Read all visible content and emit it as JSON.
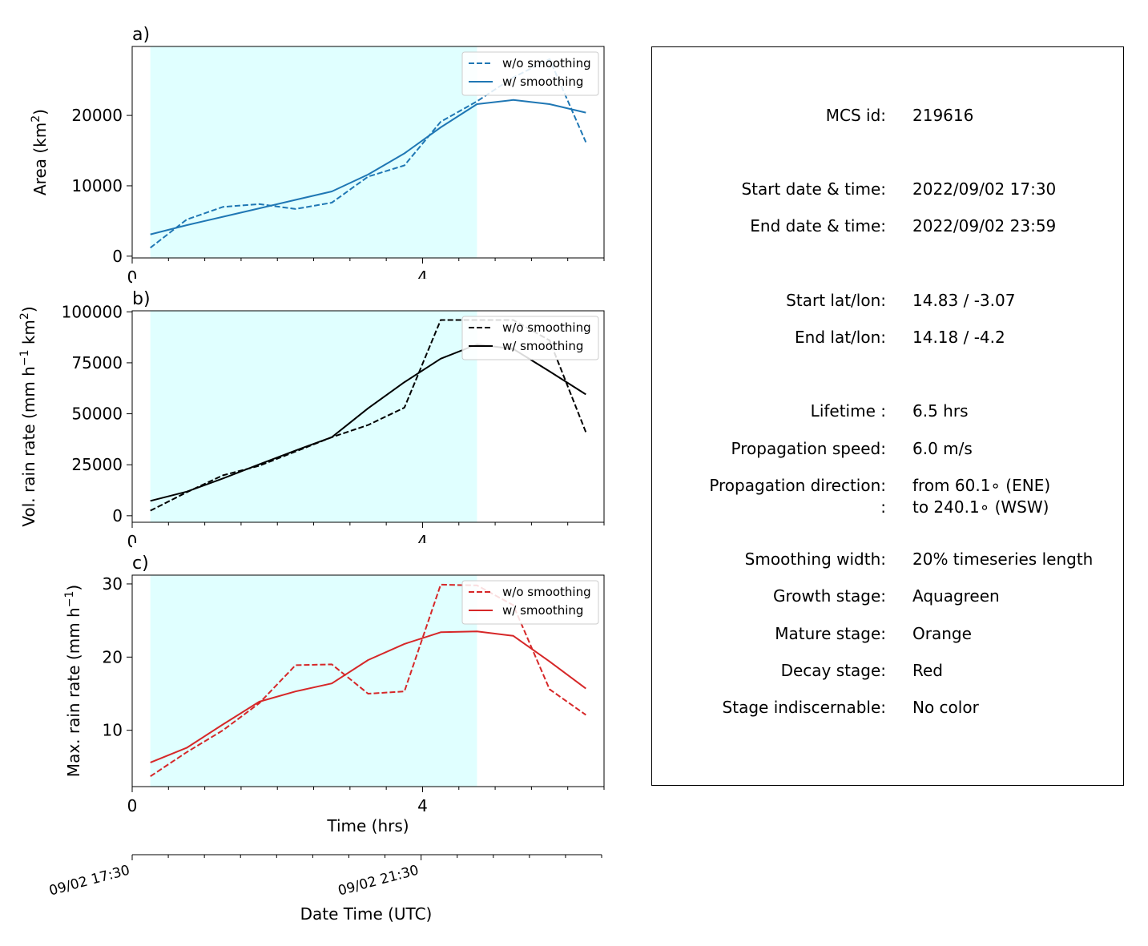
{
  "chart_data": [
    {
      "type": "line",
      "panel_label": "a)",
      "ylabel": "Area  (km",
      "ylabel_sup": "2",
      "ylabel_end": ")",
      "xticks": [
        0,
        4
      ],
      "xlim": [
        0,
        6.5
      ],
      "ylim": [
        -250,
        29800
      ],
      "yticks": [
        0,
        10000,
        20000
      ],
      "shaded_region": [
        0.25,
        4.75
      ],
      "color": "#1f77b4",
      "legend": {
        "placement": "upper right",
        "entries": [
          "w/o smoothing",
          "w/ smoothing"
        ]
      },
      "series": [
        {
          "name": "w/o smoothing",
          "style": "dashed",
          "x": [
            0.25,
            0.75,
            1.25,
            1.75,
            2.25,
            2.75,
            3.25,
            3.75,
            4.25,
            4.75,
            5.25,
            5.75,
            6.25
          ],
          "y": [
            1200,
            5200,
            7000,
            7400,
            6700,
            7600,
            11300,
            12900,
            19100,
            22000,
            25400,
            28000,
            16200
          ]
        },
        {
          "name": "w/ smoothing",
          "style": "solid",
          "x": [
            0.25,
            0.75,
            1.25,
            1.75,
            2.25,
            2.75,
            3.25,
            3.75,
            4.25,
            4.75,
            5.25,
            5.75,
            6.25
          ],
          "y": [
            3100,
            4400,
            5600,
            6800,
            8000,
            9200,
            11600,
            14600,
            18300,
            21600,
            22200,
            21600,
            20400
          ]
        }
      ]
    },
    {
      "type": "line",
      "panel_label": "b)",
      "ylabel": "Vol. rain rate (mm h",
      "ylabel_sup": "−1",
      "ylabel_mid": " km",
      "ylabel_sup2": "2",
      "ylabel_end": ")",
      "xticks": [
        0,
        4
      ],
      "xlim": [
        0,
        6.5
      ],
      "ylim": [
        -3200,
        100500
      ],
      "yticks": [
        0,
        25000,
        50000,
        75000,
        100000
      ],
      "shaded_region": [
        0.25,
        4.75
      ],
      "color": "#000000",
      "legend": {
        "placement": "upper right",
        "entries": [
          "w/o smoothing",
          "w/ smoothing"
        ]
      },
      "series": [
        {
          "name": "w/o smoothing",
          "style": "dashed",
          "x": [
            0.25,
            0.75,
            1.25,
            1.75,
            2.25,
            2.75,
            3.25,
            3.75,
            4.25,
            4.75,
            5.25,
            5.75,
            6.25
          ],
          "y": [
            2500,
            11500,
            19800,
            24500,
            31500,
            38500,
            44500,
            53000,
            96000,
            96000,
            96000,
            86000,
            41000
          ]
        },
        {
          "name": "w/ smoothing",
          "style": "solid",
          "x": [
            0.25,
            0.75,
            1.25,
            1.75,
            2.25,
            2.75,
            3.25,
            3.75,
            4.25,
            4.75,
            5.25,
            5.75,
            6.25
          ],
          "y": [
            7300,
            11800,
            18300,
            25200,
            32000,
            38500,
            52700,
            65500,
            77000,
            84000,
            81800,
            70800,
            59500
          ]
        }
      ]
    },
    {
      "type": "line",
      "panel_label": "c)",
      "ylabel": "Max. rain rate  (mm h",
      "ylabel_sup": "−1",
      "ylabel_end": ")",
      "xlabel": "Time (hrs)",
      "xticks": [
        0,
        4
      ],
      "xlim": [
        0,
        6.5
      ],
      "ylim": [
        2.3,
        31.2
      ],
      "yticks": [
        10,
        20,
        30
      ],
      "shaded_region": [
        0.25,
        4.75
      ],
      "color": "#d62728",
      "legend": {
        "placement": "upper right",
        "entries": [
          "w/o smoothing",
          "w/ smoothing"
        ]
      },
      "series": [
        {
          "name": "w/o smoothing",
          "style": "dashed",
          "x": [
            0.25,
            0.75,
            1.25,
            1.75,
            2.25,
            2.75,
            3.25,
            3.75,
            4.25,
            4.75,
            5.25,
            5.75,
            6.25
          ],
          "y": [
            3.7,
            7.0,
            10.0,
            13.7,
            18.9,
            19.0,
            15.0,
            15.3,
            29.9,
            29.8,
            27.1,
            15.6,
            12.1
          ]
        },
        {
          "name": "w/ smoothing",
          "style": "solid",
          "x": [
            0.25,
            0.75,
            1.25,
            1.75,
            2.25,
            2.75,
            3.25,
            3.75,
            4.25,
            4.75,
            5.25,
            5.75,
            6.25
          ],
          "y": [
            5.6,
            7.6,
            10.8,
            13.9,
            15.3,
            16.4,
            19.6,
            21.8,
            23.4,
            23.5,
            22.9,
            19.4,
            15.7
          ]
        }
      ]
    }
  ],
  "datetime_axis": {
    "label": "Date Time (UTC)",
    "ticks": [
      {
        "hours": 0,
        "label": "09/02 17:30"
      },
      {
        "hours": 4,
        "label": "09/02 21:30"
      }
    ]
  },
  "info": {
    "rows": [
      {
        "label": "MCS id:",
        "value": "219616"
      },
      {
        "label": "Start date & time:",
        "value": "2022/09/02 17:30"
      },
      {
        "label": "End date & time:",
        "value": "2022/09/02 23:59"
      },
      {
        "label": "Start lat/lon:",
        "value": "14.83 / -3.07"
      },
      {
        "label": "End lat/lon:",
        "value": "14.18 / -4.2"
      },
      {
        "label": "Lifetime :",
        "value": "6.5 hrs"
      },
      {
        "label": "Propagation speed:",
        "value": "6.0 m/s"
      },
      {
        "label": "Propagation direction:",
        "value": "from  60.1∘ (ENE)"
      },
      {
        "label": ":",
        "value": "to   240.1∘ (WSW)"
      },
      {
        "label": "Smoothing width:",
        "value": "20% timeseries length"
      },
      {
        "label": "Growth stage:",
        "value": "Aquagreen"
      },
      {
        "label": "Mature stage:",
        "value": "Orange"
      },
      {
        "label": "Decay stage:",
        "value": "Red"
      },
      {
        "label": "Stage indiscernable:",
        "value": "No color"
      }
    ]
  },
  "colors": {
    "shade": "#e0ffff",
    "axis": "#000000"
  }
}
